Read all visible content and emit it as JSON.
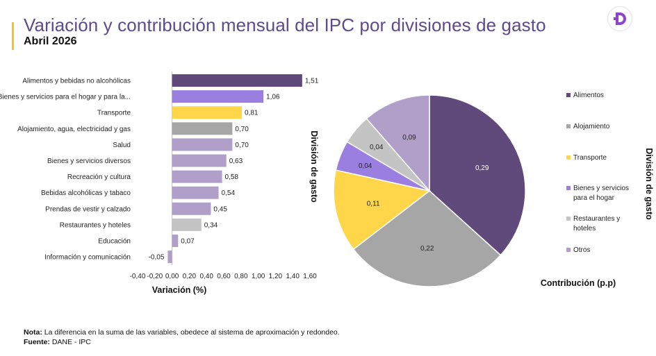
{
  "header": {
    "title": "Variación  y contribución mensual del IPC por divisiones de gasto",
    "subtitle": "Abril 2026"
  },
  "chart_data": [
    {
      "type": "bar",
      "orientation": "horizontal",
      "categories": [
        "Alimentos y bebidas no alcohólicas",
        "Bienes y servicios para el hogar y para la...",
        "Transporte",
        "Alojamiento, agua, electricidad y gas",
        "Salud",
        "Bienes y servicios diversos",
        "Recreación y cultura",
        "Bebidas alcohólicas y tabaco",
        "Prendas de vestir y calzado",
        "Restaurantes y hoteles",
        "Educación",
        "Información y comunicación"
      ],
      "values": [
        1.51,
        1.06,
        0.81,
        0.7,
        0.7,
        0.63,
        0.58,
        0.54,
        0.45,
        0.34,
        0.07,
        -0.05
      ],
      "value_labels": [
        "1,51",
        "1,06",
        "0,81",
        "0,70",
        "0,70",
        "0,63",
        "0,58",
        "0,54",
        "0,45",
        "0,34",
        "0,07",
        "-0,05"
      ],
      "colors": [
        "#5f4a7b",
        "#9b7fe0",
        "#ffd54a",
        "#a6a6a6",
        "#b09fc9",
        "#b09fc9",
        "#b09fc9",
        "#b09fc9",
        "#b09fc9",
        "#c4c4c4",
        "#b09fc9",
        "#b09fc9"
      ],
      "xlim": [
        -0.4,
        1.6
      ],
      "xticks": [
        "-0,40",
        "-0,20",
        "0,00",
        "0,20",
        "0,40",
        "0,60",
        "0,80",
        "1,00",
        "1,20",
        "1,40",
        "1,60"
      ],
      "xlabel": "Variación (%)",
      "ylabel": "División de gasto"
    },
    {
      "type": "pie",
      "slices": [
        {
          "name": "Alimentos",
          "value": 0.29,
          "label": "0,29",
          "color": "#5f4a7b"
        },
        {
          "name": "Alojamiento",
          "value": 0.22,
          "label": "0,22",
          "color": "#a6a6a6"
        },
        {
          "name": "Transporte",
          "value": 0.11,
          "label": "0,11",
          "color": "#ffd54a"
        },
        {
          "name": "Bienes y servicios para el hogar",
          "value": 0.04,
          "label": "0,04",
          "color": "#9b7fe0"
        },
        {
          "name": "Restaurantes y hoteles",
          "value": 0.04,
          "label": "0,04",
          "color": "#c4c4c4"
        },
        {
          "name": "Otros",
          "value": 0.09,
          "label": "0,09",
          "color": "#b09fc9"
        }
      ],
      "legend": [
        "Alimentos",
        "Alojamiento",
        "Transporte",
        "Bienes y servicios para el hogar",
        "Restaurantes y hoteles",
        "Otros"
      ],
      "legend_placement": "right",
      "xlabel": "Contribución (p.p)",
      "ylabel": "División de gasto"
    }
  ],
  "footer": {
    "note_label": "Nota:",
    "note_text": " La diferencia en la suma de las variables, obedece al sistema de aproximación y redondeo.",
    "source_label": "Fuente:",
    "source_text": " DANE - IPC"
  },
  "colors": {
    "accent": "#f5c518",
    "title": "#5f4a8b",
    "logo": "#8e44c9"
  }
}
